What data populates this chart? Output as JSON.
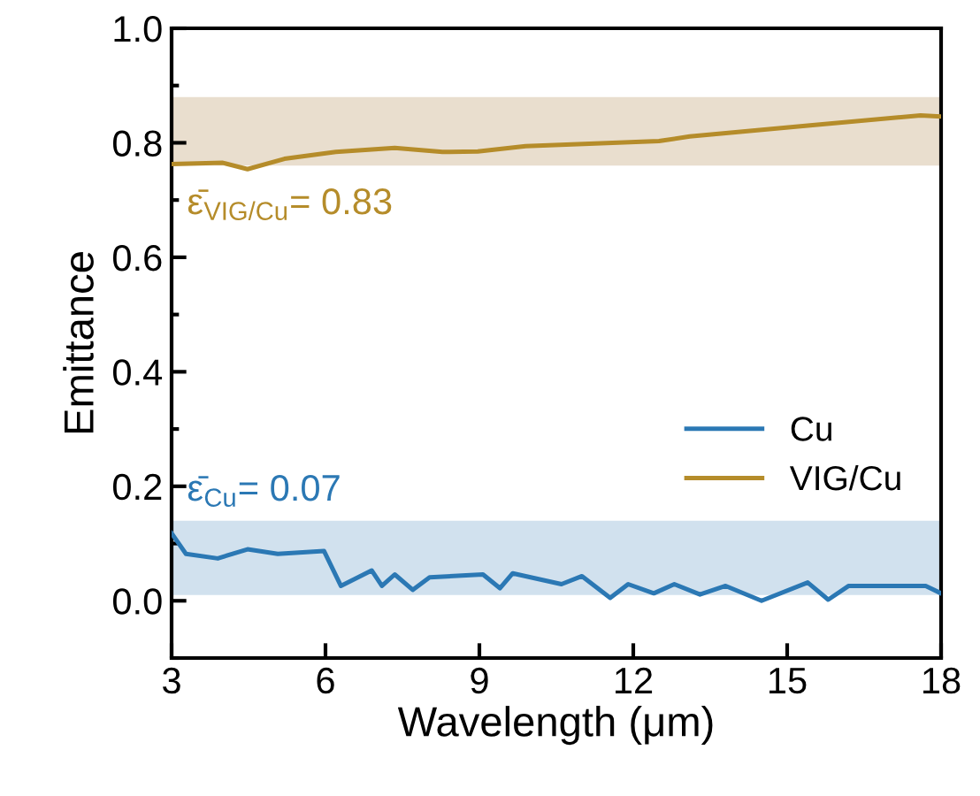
{
  "chart_data": {
    "type": "line",
    "xlabel": "Wavelength (μm)",
    "ylabel": "Emittance",
    "xlim": [
      3,
      18
    ],
    "xticks": [
      3,
      6,
      9,
      12,
      15,
      18
    ],
    "ylim": [
      -0.1,
      1.0
    ],
    "yticks": [
      {
        "value": 0.0,
        "label": "0.0"
      },
      {
        "value": 0.2,
        "label": "0.2"
      },
      {
        "value": 0.4,
        "label": "0.4"
      },
      {
        "value": 0.6,
        "label": "0.6"
      },
      {
        "value": 0.8,
        "label": "0.8"
      },
      {
        "value": 1.0,
        "label": "1.0"
      }
    ],
    "grid": false,
    "legend": "right",
    "line_style": "solid",
    "marker": "none",
    "series": [
      {
        "name": "Cu",
        "color": "#2b78b4",
        "x": [
          3,
          3.28,
          3.9,
          4.48,
          5.07,
          5.97,
          6.3,
          6.9,
          7.1,
          7.35,
          7.7,
          8.03,
          9.07,
          9.4,
          9.65,
          10.6,
          11.0,
          11.55,
          11.9,
          12.4,
          12.8,
          13.3,
          13.8,
          14.5,
          15.4,
          15.8,
          16.2,
          17.7,
          18
        ],
        "values": [
          0.118,
          0.082,
          0.074,
          0.09,
          0.082,
          0.087,
          0.026,
          0.053,
          0.026,
          0.046,
          0.019,
          0.041,
          0.046,
          0.022,
          0.048,
          0.029,
          0.043,
          0.005,
          0.029,
          0.013,
          0.029,
          0.011,
          0.026,
          0.0,
          0.032,
          0.002,
          0.026,
          0.026,
          0.013
        ]
      },
      {
        "name": "VIG/Cu",
        "color": "#b58c2a",
        "x": [
          3,
          4.0,
          4.48,
          5.2,
          6.2,
          7.35,
          8.28,
          8.97,
          9.9,
          12.5,
          13.1,
          15.4,
          17.6,
          18
        ],
        "values": [
          0.763,
          0.765,
          0.754,
          0.772,
          0.784,
          0.791,
          0.784,
          0.785,
          0.794,
          0.803,
          0.811,
          0.83,
          0.848,
          0.846
        ]
      }
    ],
    "bands": [
      {
        "axis": "y",
        "from": 0.01,
        "to": 0.14,
        "color": "#c6d9ea"
      },
      {
        "axis": "y",
        "from": 0.76,
        "to": 0.88,
        "color": "#e3d6c2"
      }
    ],
    "annotations": [
      "ε̄$_{VIG/Cu}$= 0.83",
      "ε̄$_{Cu}$= 0.07"
    ]
  }
}
